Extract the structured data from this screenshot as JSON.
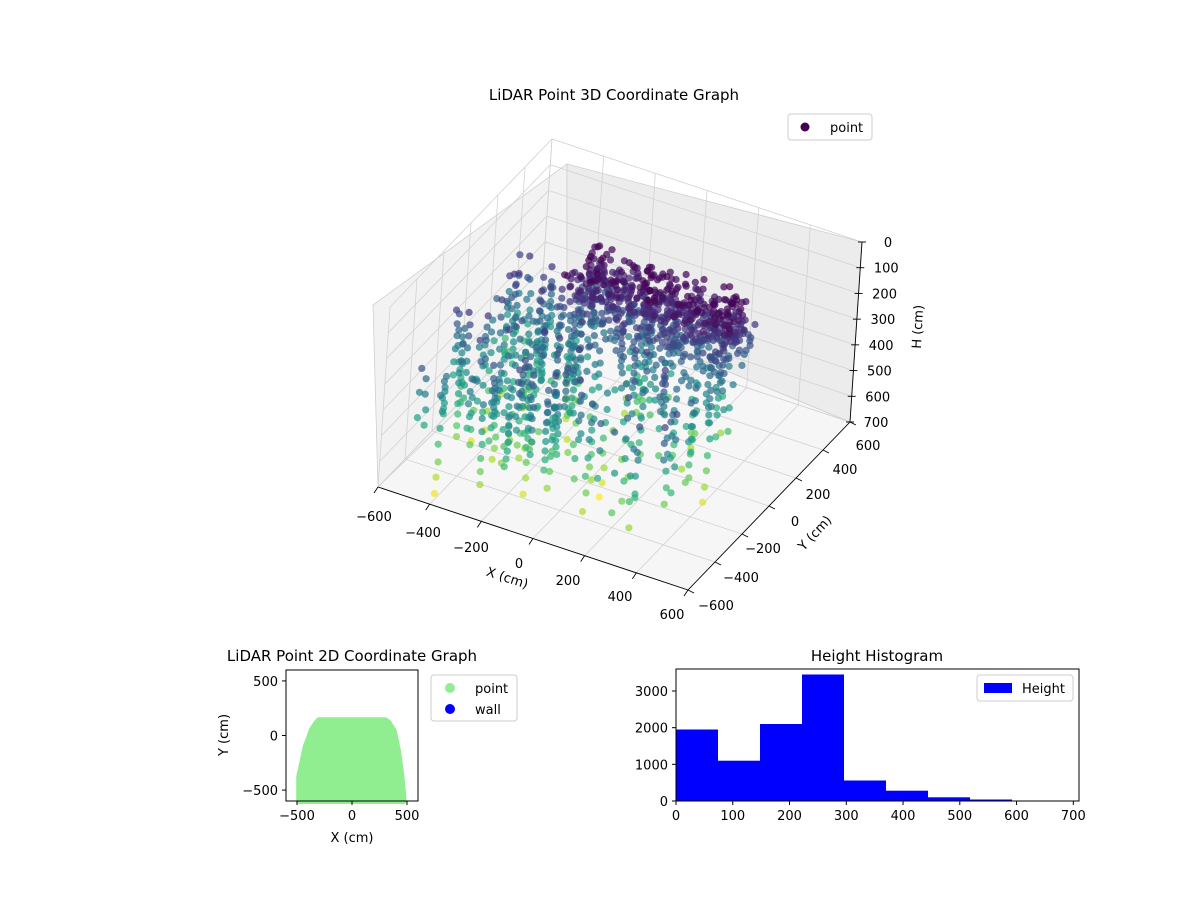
{
  "chart_data": [
    {
      "type": "scatter",
      "projection": "3d",
      "title": "LiDAR Point 3D Coordinate Graph",
      "xlabel": "X (cm)",
      "ylabel": "Y (cm)",
      "zlabel": "H (cm)",
      "xlim": [
        -600,
        600
      ],
      "ylim": [
        -600,
        600
      ],
      "zlim": [
        0,
        700
      ],
      "z_inverted": true,
      "x_ticks": [
        "−600",
        "−400",
        "−200",
        "0",
        "200",
        "400",
        "600"
      ],
      "y_ticks": [
        "−600",
        "−400",
        "−200",
        "0",
        "200",
        "400",
        "600"
      ],
      "z_ticks": [
        "0",
        "100",
        "200",
        "300",
        "400",
        "500",
        "600",
        "700"
      ],
      "colormap": "viridis",
      "legend": {
        "position": "top-right",
        "entries": [
          {
            "label": "point",
            "color": "#440154"
          }
        ]
      },
      "grid": true,
      "cloud": {
        "x_range": [
          -500,
          450
        ],
        "y_range": [
          -600,
          130
        ],
        "roof_height": [
          0,
          120
        ],
        "pillar_height": [
          120,
          700
        ]
      }
    },
    {
      "type": "scatter",
      "title": "LiDAR Point 2D Coordinate Graph",
      "xlabel": "X (cm)",
      "ylabel": "Y (cm)",
      "xlim": [
        -600,
        600
      ],
      "ylim": [
        -600,
        600
      ],
      "x_ticks": [
        "−500",
        "0",
        "500"
      ],
      "y_ticks": [
        "−500",
        "0",
        "500"
      ],
      "legend": {
        "position": "outside-right",
        "entries": [
          {
            "label": "point",
            "color": "#90ee90"
          },
          {
            "label": "wall",
            "color": "#0000ff"
          }
        ]
      },
      "footprint": [
        [
          -480,
          -600
        ],
        [
          -480,
          -380
        ],
        [
          -420,
          -100
        ],
        [
          -360,
          60
        ],
        [
          -320,
          120
        ],
        [
          -300,
          140
        ],
        [
          300,
          140
        ],
        [
          330,
          120
        ],
        [
          380,
          40
        ],
        [
          420,
          -150
        ],
        [
          450,
          -380
        ],
        [
          470,
          -600
        ]
      ]
    },
    {
      "type": "bar",
      "title": "Height Histogram",
      "xlabel": "",
      "ylabel": "",
      "bin_edges": [
        0,
        74,
        148,
        222,
        296,
        370,
        444,
        518,
        592,
        666,
        700
      ],
      "values": [
        1950,
        1100,
        2100,
        3450,
        560,
        280,
        100,
        40,
        10,
        5
      ],
      "xlim": [
        0,
        710
      ],
      "ylim": [
        0,
        3600
      ],
      "x_ticks": [
        0,
        100,
        200,
        300,
        400,
        500,
        600,
        700
      ],
      "y_ticks": [
        0,
        1000,
        2000,
        3000
      ],
      "color": "#0000ff",
      "legend": {
        "position": "top-right",
        "entries": [
          {
            "label": "Height",
            "color": "#0000ff"
          }
        ]
      }
    }
  ]
}
